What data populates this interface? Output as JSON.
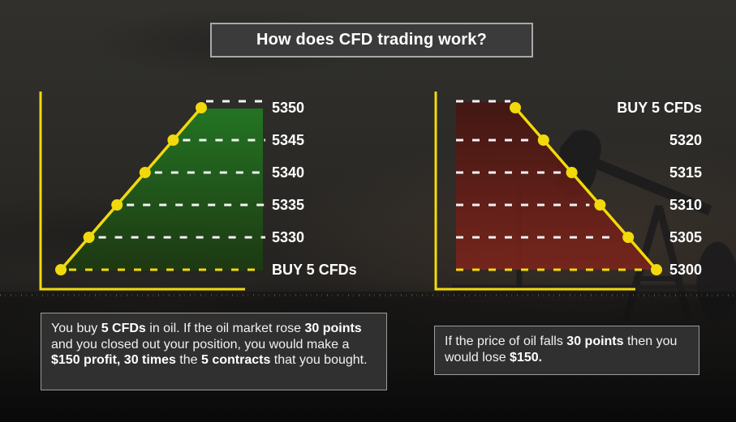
{
  "title": {
    "text": "How does CFD trading work?"
  },
  "chart_data": [
    {
      "type": "line",
      "name": "buy-profit-scenario",
      "direction": "rise",
      "tick_labels": [
        "5350",
        "5345",
        "5340",
        "5335",
        "5330",
        "BUY 5 CFDs"
      ],
      "point_levels": [
        "BUY 5 CFDs",
        "5330",
        "5335",
        "5340",
        "5345",
        "5350"
      ],
      "highlight_level": "BUY 5 CFDs",
      "line_color": "#f2d90c",
      "dash_color": "#f3f3f3",
      "fill_top": "#227c22",
      "fill_bottom": "#1d3a11",
      "grid": "dashed-horizontal",
      "legend": "none"
    },
    {
      "type": "line",
      "name": "price-fall-loss-scenario",
      "direction": "fall",
      "tick_labels": [
        "BUY 5 CFDs",
        "5320",
        "5315",
        "5310",
        "5305",
        "5300"
      ],
      "point_levels": [
        "BUY 5 CFDs",
        "5320",
        "5315",
        "5310",
        "5305",
        "5300"
      ],
      "highlight_level": "5300",
      "line_color": "#f2d90c",
      "dash_color": "#f3f3f3",
      "fill_top": "#451511",
      "fill_bottom": "#7c241b",
      "grid": "dashed-horizontal",
      "legend": "none"
    }
  ],
  "explanations": {
    "left": {
      "segments": [
        {
          "text": "You buy ",
          "bold": false
        },
        {
          "text": "5 CFDs",
          "bold": true
        },
        {
          "text": " in oil. If the oil market rose ",
          "bold": false
        },
        {
          "text": "30 points",
          "bold": true
        },
        {
          "text": " and you closed out your position, you would make a ",
          "bold": false
        },
        {
          "text": "$150 profit, 30 times",
          "bold": true
        },
        {
          "text": " the ",
          "bold": false
        },
        {
          "text": "5 contracts",
          "bold": true
        },
        {
          "text": " that you bought.",
          "bold": false
        }
      ]
    },
    "right": {
      "segments": [
        {
          "text": "If the price of oil falls ",
          "bold": false
        },
        {
          "text": "30 points",
          "bold": true
        },
        {
          "text": " then you would lose ",
          "bold": false
        },
        {
          "text": "$150.",
          "bold": true
        }
      ]
    }
  },
  "colors": {
    "accent_yellow": "#f2d90c",
    "dash_white": "#f3f3f3",
    "profit_green": "#227c22",
    "loss_red": "#7c241b",
    "panel_grey": "#3b3b3b"
  }
}
